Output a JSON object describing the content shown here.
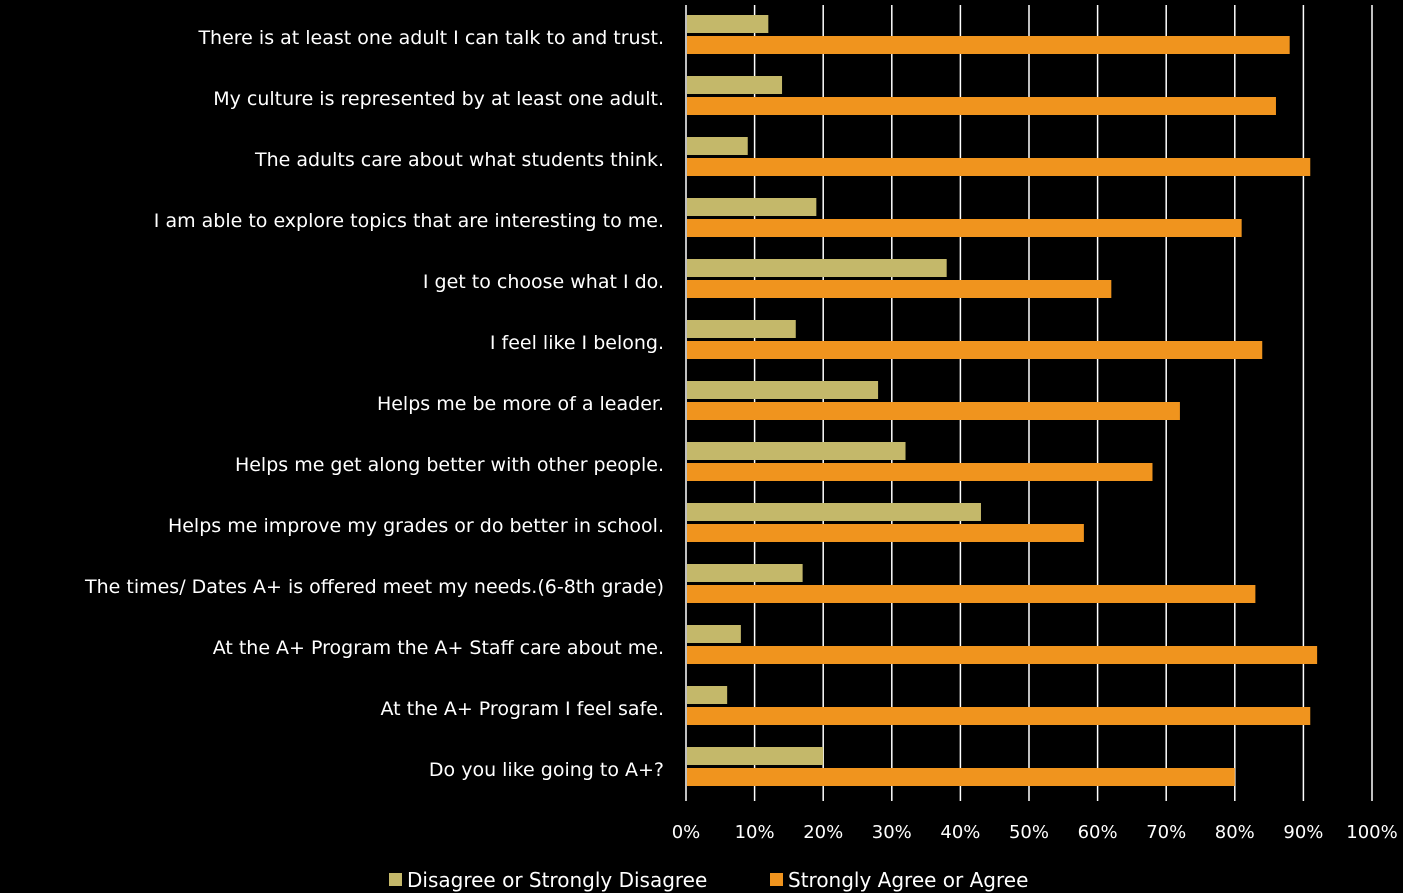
{
  "chart_data": {
    "type": "bar",
    "orientation": "horizontal",
    "categories": [
      "There is at least one adult I can talk to and trust.",
      "My culture is represented by at least one adult.",
      "The adults care about what students think.",
      "I am able to explore topics that are interesting to me.",
      "I get to choose what I do.",
      "I feel like I belong.",
      "Helps me be more of a leader.",
      "Helps me get along better with other people.",
      "Helps me improve my grades or do better in school.",
      "The times/ Dates A+ is offered meet my needs.(6-8th grade)",
      "At the A+ Program the A+ Staff care about me.",
      "At the A+ Program I feel safe.",
      "Do you like going to A+?"
    ],
    "series": [
      {
        "name": "Disagree or Strongly Disagree",
        "color": "#c4b86a",
        "values": [
          12,
          14,
          9,
          19,
          38,
          16,
          28,
          32,
          43,
          17,
          8,
          6,
          20
        ]
      },
      {
        "name": "Strongly Agree or Agree",
        "color": "#f0941e",
        "values": [
          88,
          86,
          91,
          81,
          62,
          84,
          72,
          68,
          58,
          83,
          92,
          91,
          80
        ]
      }
    ],
    "xlim": [
      0,
      100
    ],
    "xticks": [
      "0%",
      "10%",
      "20%",
      "30%",
      "40%",
      "50%",
      "60%",
      "70%",
      "80%",
      "90%",
      "100%"
    ],
    "grid": "vertical",
    "legend": "bottom",
    "title": "",
    "xlabel": "",
    "ylabel": ""
  }
}
